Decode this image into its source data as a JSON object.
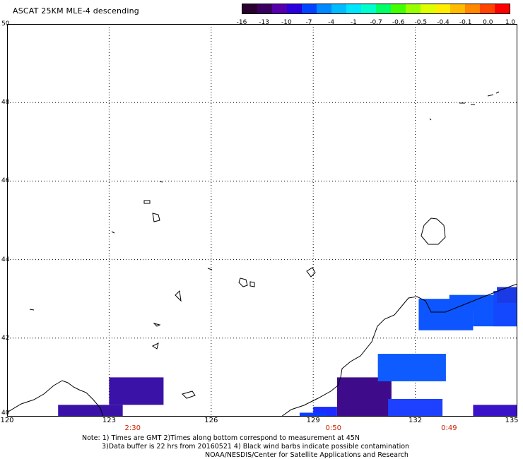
{
  "title": "ASCAT 25KM MLE-4 descending",
  "colorbar": {
    "colors": [
      "#2a0030",
      "#3a0060",
      "#5500aa",
      "#2a00dd",
      "#0044ff",
      "#0088ff",
      "#00bbff",
      "#00e5ff",
      "#00ffcc",
      "#00ff66",
      "#44ff00",
      "#99ff00",
      "#ddff00",
      "#ffee00",
      "#ffbb00",
      "#ff8800",
      "#ff4400",
      "#ff0000"
    ],
    "labels": [
      "-16",
      "-13",
      "-10",
      "-7",
      "-4",
      "-1",
      "-0.7",
      "-0.6",
      "-0.5",
      "-0.4",
      "-0.1",
      "0.0",
      "1.0"
    ]
  },
  "axes": {
    "lat_labels": [
      "50",
      "48",
      "46",
      "44",
      "42",
      "40"
    ],
    "lon_labels": [
      "120",
      "123",
      "126",
      "129",
      "132",
      "135"
    ],
    "pass_times": [
      {
        "label": "2:30",
        "lon": 123.9
      },
      {
        "label": "0:50",
        "lon": 129.8
      },
      {
        "label": "0:49",
        "lon": 133.2
      }
    ]
  },
  "data_cells": [
    {
      "lon1": 121.5,
      "lon2": 123.4,
      "lat1": 40.0,
      "lat2": 40.3,
      "color": "#3a12a8"
    },
    {
      "lon1": 123.0,
      "lon2": 124.6,
      "lat1": 40.3,
      "lat2": 41.0,
      "color": "#3a12a8"
    },
    {
      "lon1": 129.7,
      "lon2": 131.3,
      "lat1": 40.0,
      "lat2": 41.0,
      "color": "#3e0c8a"
    },
    {
      "lon1": 129.0,
      "lon2": 129.7,
      "lat1": 40.0,
      "lat2": 40.25,
      "color": "#1a2cff"
    },
    {
      "lon1": 128.6,
      "lon2": 129.4,
      "lat1": 40.0,
      "lat2": 40.1,
      "color": "#0a3cff"
    },
    {
      "lon1": 131.2,
      "lon2": 132.8,
      "lat1": 40.0,
      "lat2": 40.45,
      "color": "#1e40ff"
    },
    {
      "lon1": 130.9,
      "lon2": 132.9,
      "lat1": 40.9,
      "lat2": 41.6,
      "color": "#0e5cff"
    },
    {
      "lon1": 133.7,
      "lon2": 135.3,
      "lat1": 40.0,
      "lat2": 40.3,
      "color": "#3a12c8"
    },
    {
      "lon1": 132.1,
      "lon2": 133.7,
      "lat1": 42.2,
      "lat2": 43.0,
      "color": "#0d55ff"
    },
    {
      "lon1": 133.0,
      "lon2": 134.6,
      "lat1": 42.7,
      "lat2": 43.1,
      "color": "#0d55ff"
    },
    {
      "lon1": 133.7,
      "lon2": 135.3,
      "lat1": 42.3,
      "lat2": 43.0,
      "color": "#0d55ff"
    },
    {
      "lon1": 134.3,
      "lon2": 135.9,
      "lat1": 42.3,
      "lat2": 43.2,
      "color": "#1448ff"
    },
    {
      "lon1": 134.4,
      "lon2": 135.7,
      "lat1": 42.9,
      "lat2": 43.3,
      "color": "#1a3ae6"
    }
  ],
  "notes": {
    "line1": "Note: 1) Times are GMT 2)Times along bottom correspond to measurement at 45N",
    "line2": "3)Data buffer is 22 hrs from 20160521 4) Black wind barbs indicate possible contamination",
    "line3": "NOAA/NESDIS/Center for Satellite Applications and Research"
  }
}
